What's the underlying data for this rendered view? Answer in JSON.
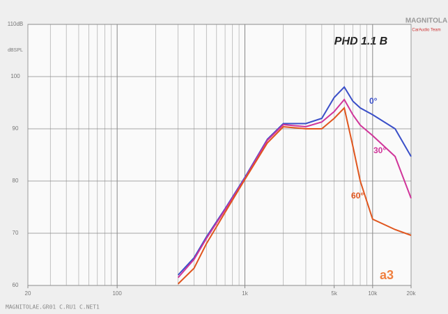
{
  "chart_data": {
    "type": "line",
    "title": "PHD 1.1 B",
    "annotations": [
      "a3",
      "MAGNITOLA",
      "CarAudio Team",
      "MAGNITOLAE.GR01 C.RU1 C.NET1"
    ],
    "x": [
      300,
      400,
      500,
      700,
      1000,
      1500,
      2000,
      3000,
      4000,
      5000,
      6000,
      7000,
      8000,
      10000,
      15000,
      20000
    ],
    "series": [
      {
        "name": "0°",
        "color": "#3a4fc8",
        "values": [
          62,
          65.3,
          69.3,
          74.7,
          80.7,
          88,
          91,
          91,
          92,
          96,
          98,
          95.3,
          94,
          92.7,
          90,
          84.7
        ]
      },
      {
        "name": "30°",
        "color": "#d0359a",
        "values": [
          61.5,
          65,
          69,
          74.5,
          80.5,
          87.8,
          90.8,
          90.4,
          91.3,
          93.3,
          95.6,
          92.7,
          90.7,
          88.7,
          84.7,
          76.7
        ]
      },
      {
        "name": "60°",
        "color": "#e0561e",
        "values": [
          60.3,
          63.3,
          68,
          74,
          80.3,
          87.3,
          90.4,
          90,
          90,
          92,
          94,
          86.7,
          80,
          72.7,
          70.7,
          69.6
        ]
      }
    ],
    "xlim": [
      20,
      20000
    ],
    "ylim": [
      60,
      110
    ],
    "xscale": "log",
    "xticks": [
      {
        "value": 20,
        "label": "20"
      },
      {
        "value": 100,
        "label": "100"
      },
      {
        "value": 1000,
        "label": "1k"
      },
      {
        "value": 5000,
        "label": "5k"
      },
      {
        "value": 10000,
        "label": "10k"
      },
      {
        "value": 20000,
        "label": "20k"
      }
    ],
    "yticks": [
      {
        "value": 60,
        "label": "60"
      },
      {
        "value": 70,
        "label": "70"
      },
      {
        "value": 80,
        "label": "80"
      },
      {
        "value": 90,
        "label": "90"
      },
      {
        "value": 100,
        "label": "100"
      },
      {
        "value": 110,
        "label": "110dB"
      }
    ],
    "ylabel": "dBSPL",
    "grid": true
  }
}
